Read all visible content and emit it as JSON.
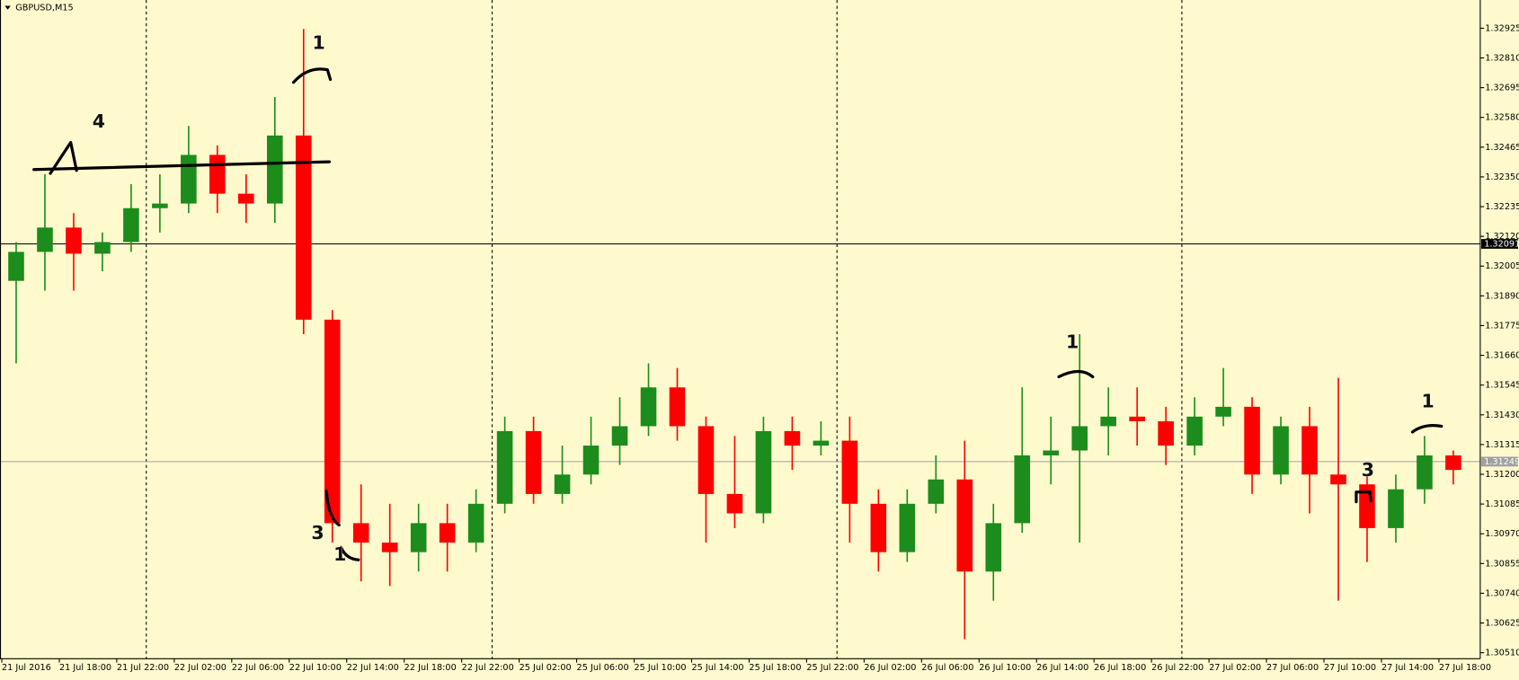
{
  "chart_data": {
    "type": "candlestick",
    "title": "GBPUSD,M15",
    "x": [
      4,
      12,
      20,
      28,
      36,
      44,
      52,
      60,
      68,
      76,
      84,
      92,
      100,
      108,
      116,
      124,
      132,
      140,
      148,
      156,
      164,
      172,
      180,
      188,
      196,
      204,
      212,
      220,
      228,
      236,
      244,
      252,
      260,
      268,
      276,
      284,
      292,
      300,
      308,
      316,
      324,
      332,
      340,
      348,
      356,
      364,
      372,
      380,
      388,
      396,
      404
    ],
    "open": [
      1.31948,
      1.3206,
      1.32154,
      1.32053,
      1.32098,
      1.32229,
      1.32247,
      1.32435,
      1.32285,
      1.32247,
      1.3251,
      1.31798,
      1.31011,
      1.30936,
      1.30899,
      1.31011,
      1.30936,
      1.31086,
      1.31367,
      1.31124,
      1.31199,
      1.31311,
      1.31386,
      1.31536,
      1.31386,
      1.31124,
      1.31049,
      1.31367,
      1.31311,
      1.3133,
      1.31086,
      1.30899,
      1.31086,
      1.3118,
      1.30824,
      1.31011,
      1.31273,
      1.31292,
      1.31386,
      1.31423,
      1.31405,
      1.31311,
      1.31423,
      1.31461,
      1.31199,
      1.31386,
      1.31199,
      1.31161,
      1.30992,
      1.31142,
      1.31273
    ],
    "high": [
      1.32098,
      1.3236,
      1.3221,
      1.32135,
      1.32322,
      1.3236,
      1.32547,
      1.32472,
      1.3236,
      1.32659,
      1.32922,
      1.31835,
      1.31161,
      1.31086,
      1.31086,
      1.31086,
      1.31142,
      1.31423,
      1.31423,
      1.31311,
      1.31423,
      1.31498,
      1.31629,
      1.31611,
      1.31423,
      1.31348,
      1.31423,
      1.31423,
      1.31405,
      1.31423,
      1.31142,
      1.31142,
      1.31273,
      1.3133,
      1.31086,
      1.31536,
      1.31423,
      1.31742,
      1.31536,
      1.31536,
      1.31461,
      1.31498,
      1.31611,
      1.31498,
      1.31423,
      1.31461,
      1.31573,
      1.31199,
      1.31199,
      1.31348,
      1.31292
    ],
    "low": [
      1.31629,
      1.3191,
      1.3191,
      1.31985,
      1.3206,
      1.32135,
      1.3221,
      1.3221,
      1.32172,
      1.32172,
      1.31742,
      1.30936,
      1.30786,
      1.30768,
      1.30824,
      1.30824,
      1.30899,
      1.31049,
      1.31086,
      1.31086,
      1.31161,
      1.31236,
      1.31348,
      1.3133,
      1.30936,
      1.30992,
      1.31011,
      1.31217,
      1.31273,
      1.30936,
      1.30824,
      1.30861,
      1.31049,
      1.30562,
      1.30711,
      1.30974,
      1.31161,
      1.30936,
      1.31273,
      1.31311,
      1.31236,
      1.31273,
      1.31386,
      1.31124,
      1.31161,
      1.31049,
      1.30711,
      1.30861,
      1.30936,
      1.31086,
      1.31161
    ],
    "close": [
      1.3206,
      1.32154,
      1.32053,
      1.32098,
      1.32229,
      1.32247,
      1.32435,
      1.32285,
      1.32247,
      1.3251,
      1.31798,
      1.31011,
      1.30936,
      1.30899,
      1.31011,
      1.30936,
      1.31086,
      1.31367,
      1.31124,
      1.31199,
      1.31311,
      1.31386,
      1.31536,
      1.31386,
      1.31124,
      1.31049,
      1.31367,
      1.31311,
      1.3133,
      1.31086,
      1.30899,
      1.31086,
      1.3118,
      1.30824,
      1.31011,
      1.31273,
      1.31292,
      1.31386,
      1.31423,
      1.31405,
      1.31311,
      1.31423,
      1.31461,
      1.31199,
      1.31386,
      1.31199,
      1.31161,
      1.30992,
      1.31142,
      1.31273,
      1.31217
    ],
    "up_color": "#1c8c1c",
    "down_color": "#ff0000",
    "xlim": [
      -0.5,
      411.5
    ],
    "ylim": [
      1.30487,
      1.33034
    ],
    "xticks": [
      {
        "value": 0,
        "label": "21 Jul 2016"
      },
      {
        "value": 16,
        "label": "21 Jul 18:00"
      },
      {
        "value": 32,
        "label": "21 Jul 22:00"
      },
      {
        "value": 48,
        "label": "22 Jul 02:00"
      },
      {
        "value": 64,
        "label": "22 Jul 06:00"
      },
      {
        "value": 80,
        "label": "22 Jul 10:00"
      },
      {
        "value": 96,
        "label": "22 Jul 14:00"
      },
      {
        "value": 112,
        "label": "22 Jul 18:00"
      },
      {
        "value": 128,
        "label": "22 Jul 22:00"
      },
      {
        "value": 144,
        "label": "25 Jul 02:00"
      },
      {
        "value": 160,
        "label": "25 Jul 06:00"
      },
      {
        "value": 176,
        "label": "25 Jul 10:00"
      },
      {
        "value": 192,
        "label": "25 Jul 14:00"
      },
      {
        "value": 208,
        "label": "25 Jul 18:00"
      },
      {
        "value": 224,
        "label": "25 Jul 22:00"
      },
      {
        "value": 240,
        "label": "26 Jul 02:00"
      },
      {
        "value": 256,
        "label": "26 Jul 06:00"
      },
      {
        "value": 272,
        "label": "26 Jul 10:00"
      },
      {
        "value": 288,
        "label": "26 Jul 14:00"
      },
      {
        "value": 304,
        "label": "26 Jul 18:00"
      },
      {
        "value": 320,
        "label": "26 Jul 22:00"
      },
      {
        "value": 336,
        "label": "27 Jul 02:00"
      },
      {
        "value": 352,
        "label": "27 Jul 06:00"
      },
      {
        "value": 368,
        "label": "27 Jul 10:00"
      },
      {
        "value": 384,
        "label": "27 Jul 14:00"
      },
      {
        "value": 400,
        "label": "27 Jul 18:00"
      }
    ],
    "yticks": [
      1.32925,
      {
        "value": 1.3281,
        "label": "1.32810"
      },
      1.32695,
      {
        "value": 1.3258,
        "label": "1.32580"
      },
      1.32465,
      {
        "value": 1.3235,
        "label": "1.32350"
      },
      1.32235,
      {
        "value": 1.3212,
        "label": "1.32120"
      },
      1.32005,
      {
        "value": 1.3189,
        "label": "1.31890"
      },
      1.31775,
      {
        "value": 1.3166,
        "label": "1.31660"
      },
      1.31545,
      {
        "value": 1.3143,
        "label": "1.31430"
      },
      1.31315,
      {
        "value": 1.312,
        "label": "1.31200"
      },
      1.31085,
      {
        "value": 1.3097,
        "label": "1.30970"
      },
      1.30855,
      {
        "value": 1.3074,
        "label": "1.30740"
      },
      1.30625,
      {
        "value": 1.3051,
        "label": "1.30510"
      }
    ],
    "lines": [
      {
        "value": 1.32091,
        "color": "#000000"
      },
      {
        "value": 1.31249,
        "color": "#a0a0a0"
      }
    ],
    "annotations": [
      "1",
      "4",
      "3",
      "1",
      "1",
      "3",
      "1"
    ]
  }
}
